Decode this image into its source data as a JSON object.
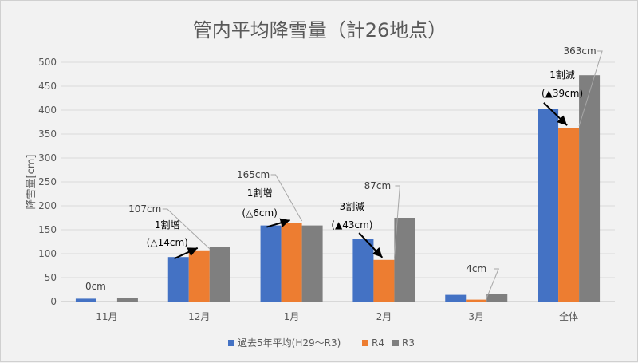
{
  "chart_data": {
    "type": "bar",
    "title": "管内平均降雪量（計26地点）",
    "xlabel": "",
    "ylabel": "降雪量[cm]",
    "ylim": [
      0,
      500
    ],
    "yticks": [
      0,
      50,
      100,
      150,
      200,
      250,
      300,
      350,
      400,
      450,
      500
    ],
    "grid": true,
    "legend_position": "bottom",
    "categories": [
      "11月",
      "12月",
      "1月",
      "2月",
      "3月",
      "全体"
    ],
    "series": [
      {
        "name": "過去5年平均(H29～R3)",
        "color": "#4472c4",
        "values": [
          6,
          93,
          159,
          130,
          14,
          402
        ]
      },
      {
        "name": "R4",
        "color": "#ed7d31",
        "values": [
          0,
          107,
          165,
          87,
          4,
          363
        ]
      },
      {
        "name": "R3",
        "color": "#7f7f7f",
        "values": [
          8,
          114,
          159,
          175,
          16,
          473
        ]
      }
    ],
    "data_labels": [
      "0cm",
      "107cm",
      "165cm",
      "87cm",
      "4cm",
      "363cm"
    ],
    "annotations": [
      null,
      {
        "ratio": "1割増",
        "diff": "(△14cm)"
      },
      {
        "ratio": "1割増",
        "diff": "(△6cm)"
      },
      {
        "ratio": "3割減",
        "diff": "(▲43cm)"
      },
      null,
      {
        "ratio": "1割減",
        "diff": "(▲39cm)"
      }
    ]
  }
}
